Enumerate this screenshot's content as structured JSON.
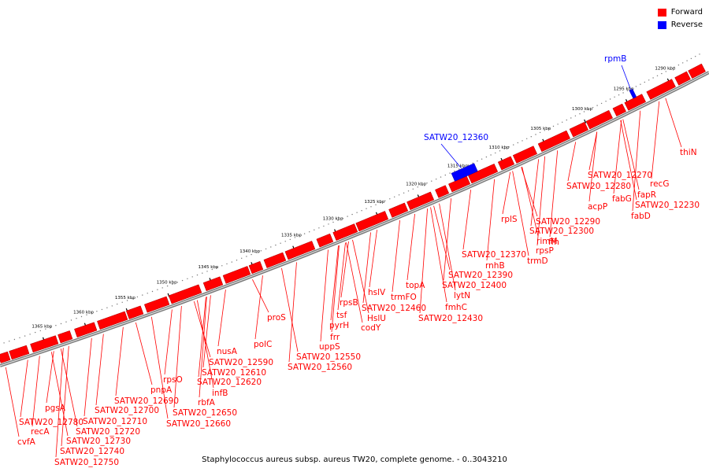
{
  "legend": {
    "forward": {
      "label": "Forward",
      "color": "#ff0000"
    },
    "reverse": {
      "label": "Reverse",
      "color": "#0000ff"
    }
  },
  "caption": "Staphylococcus aureus subsp. aureus TW20, complete genome. - 0..3043210",
  "kbp_ticks": [
    {
      "label": "1290 kbp",
      "pos": 1290
    },
    {
      "label": "1295 kbp",
      "pos": 1295
    },
    {
      "label": "1300 kbp",
      "pos": 1300
    },
    {
      "label": "1305 kbp",
      "pos": 1305
    },
    {
      "label": "1310 kbp",
      "pos": 1310
    },
    {
      "label": "1315 kbp",
      "pos": 1315
    },
    {
      "label": "1320 kbp",
      "pos": 1320
    },
    {
      "label": "1325 kbp",
      "pos": 1325
    },
    {
      "label": "1330 kbp",
      "pos": 1330
    },
    {
      "label": "1335 kbp",
      "pos": 1335
    },
    {
      "label": "1340 kbp",
      "pos": 1340
    },
    {
      "label": "1345 kbp",
      "pos": 1345
    },
    {
      "label": "1350 kbp",
      "pos": 1350
    },
    {
      "label": "1355 kbp",
      "pos": 1355
    },
    {
      "label": "1360 kbp",
      "pos": 1360
    },
    {
      "label": "1365 kbp",
      "pos": 1365
    }
  ],
  "forward_labels": [
    "thiN",
    "recG",
    "SATW20_12270",
    "fapR",
    "SATW20_12280",
    "fabG",
    "SATW20_12230",
    "acpP",
    "fabD",
    "SATW20_12290",
    "rplS",
    "SATW20_12300",
    "rimM",
    "ffh",
    "rpsP",
    "trmD",
    "SATW20_12370",
    "rnhB",
    "SATW20_12390",
    "SATW20_12400",
    "topA",
    "lytN",
    "hslV",
    "trmFO",
    "fmhC",
    "SATW20_12460",
    "rpsB",
    "HslU",
    "SATW20_12430",
    "tsf",
    "codY",
    "pyrH",
    "frr",
    "proS",
    "uppS",
    "polC",
    "SATW20_12550",
    "nusA",
    "SATW20_12560",
    "SATW20_12590",
    "SATW20_12610",
    "SATW20_12620",
    "infB",
    "rpsO",
    "rbfA",
    "pnpA",
    "SATW20_12650",
    "SATW20_12690",
    "SATW20_12660",
    "SATW20_12700",
    "SATW20_12710",
    "SATW20_12720",
    "SATW20_12780",
    "pgsA",
    "SATW20_12730",
    "recA",
    "SATW20_12740",
    "cvfA",
    "SATW20_12750"
  ],
  "reverse_labels": [
    "rpmB",
    "SATW20_12360"
  ]
}
